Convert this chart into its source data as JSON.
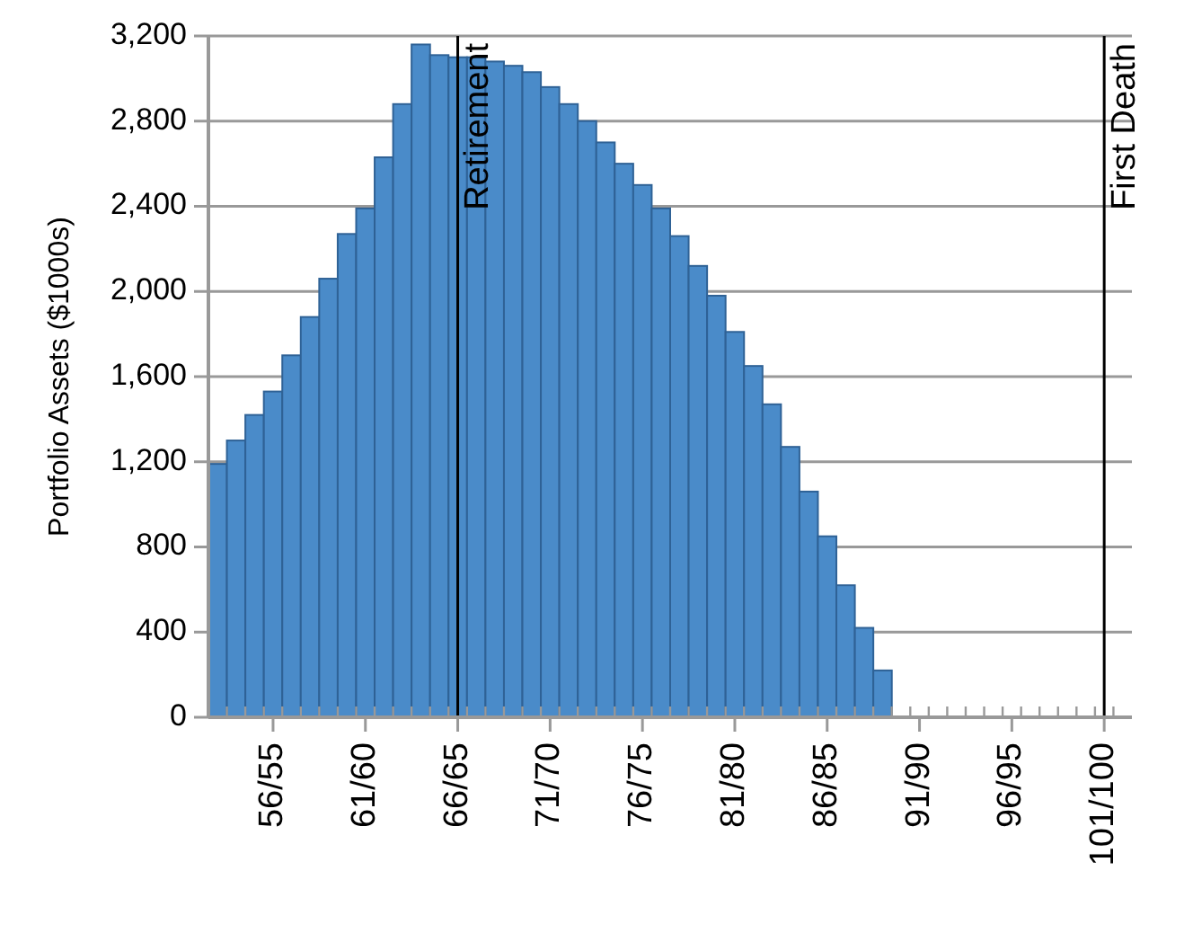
{
  "chart_data": {
    "type": "bar",
    "ylabel": "Portfolio Assets ($1000s)",
    "categories": [
      null,
      null,
      null,
      "56/55",
      null,
      null,
      null,
      null,
      "61/60",
      null,
      null,
      null,
      null,
      "66/65",
      null,
      null,
      null,
      null,
      "71/70",
      null,
      null,
      null,
      null,
      "76/75",
      null,
      null,
      null,
      null,
      "81/80",
      null,
      null,
      null,
      null,
      "86/85",
      null,
      null,
      null,
      null,
      "91/90",
      null,
      null,
      null,
      null,
      "96/95",
      null,
      null,
      null,
      null,
      "101/100",
      null
    ],
    "values": [
      1190,
      1300,
      1420,
      1530,
      1700,
      1880,
      2060,
      2270,
      2390,
      2630,
      2880,
      3160,
      3110,
      3100,
      3100,
      3080,
      3060,
      3030,
      2960,
      2880,
      2800,
      2700,
      2600,
      2500,
      2390,
      2260,
      2120,
      1980,
      1810,
      1650,
      1470,
      1270,
      1060,
      850,
      620,
      420,
      220,
      0,
      0,
      0,
      0,
      0,
      0,
      0,
      0,
      0,
      0,
      0,
      0,
      0
    ],
    "color": "#4a8bc9",
    "ylim": [
      0,
      3200
    ],
    "yticks": [
      {
        "value": 0,
        "label": "0"
      },
      {
        "value": 400,
        "label": "400"
      },
      {
        "value": 800,
        "label": "800"
      },
      {
        "value": 1200,
        "label": "1,200"
      },
      {
        "value": 1600,
        "label": "1,600"
      },
      {
        "value": 2000,
        "label": "2,000"
      },
      {
        "value": 2400,
        "label": "2,400"
      },
      {
        "value": 2800,
        "label": "2,800"
      },
      {
        "value": 3200,
        "label": "3,200"
      }
    ],
    "grid": "y",
    "ref_lines": [
      {
        "axis": "x",
        "value": "66/65",
        "label": "Retirement"
      },
      {
        "axis": "x",
        "value": "101/100",
        "label": "First Death"
      }
    ]
  }
}
